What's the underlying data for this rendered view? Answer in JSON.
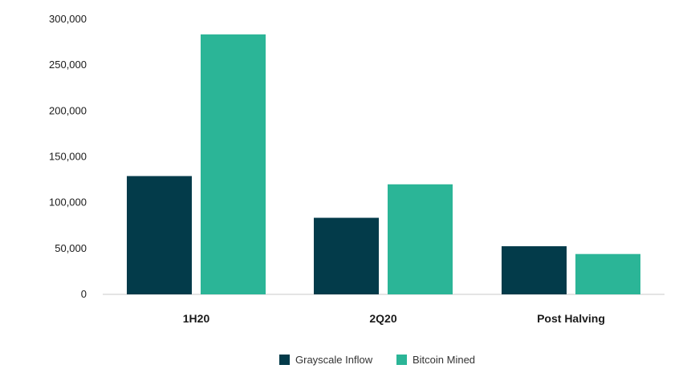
{
  "chart_data": {
    "type": "bar",
    "title": "",
    "xlabel": "",
    "ylabel": "",
    "categories": [
      "1H20",
      "2Q20",
      "Post Halving"
    ],
    "series": [
      {
        "name": "Grayscale Inflow",
        "color": "#033b4a",
        "values": [
          129000,
          83500,
          52500
        ]
      },
      {
        "name": "Bitcoin Mined",
        "color": "#2bb597",
        "values": [
          283500,
          120000,
          44000
        ]
      }
    ],
    "ylim": [
      0,
      300000
    ],
    "yticks": [
      0,
      50000,
      100000,
      150000,
      200000,
      250000,
      300000
    ],
    "ytick_labels": [
      "0",
      "50,000",
      "100,000",
      "150,000",
      "200,000",
      "250,000",
      "300,000"
    ],
    "grid": false,
    "legend": "bottom-center"
  }
}
